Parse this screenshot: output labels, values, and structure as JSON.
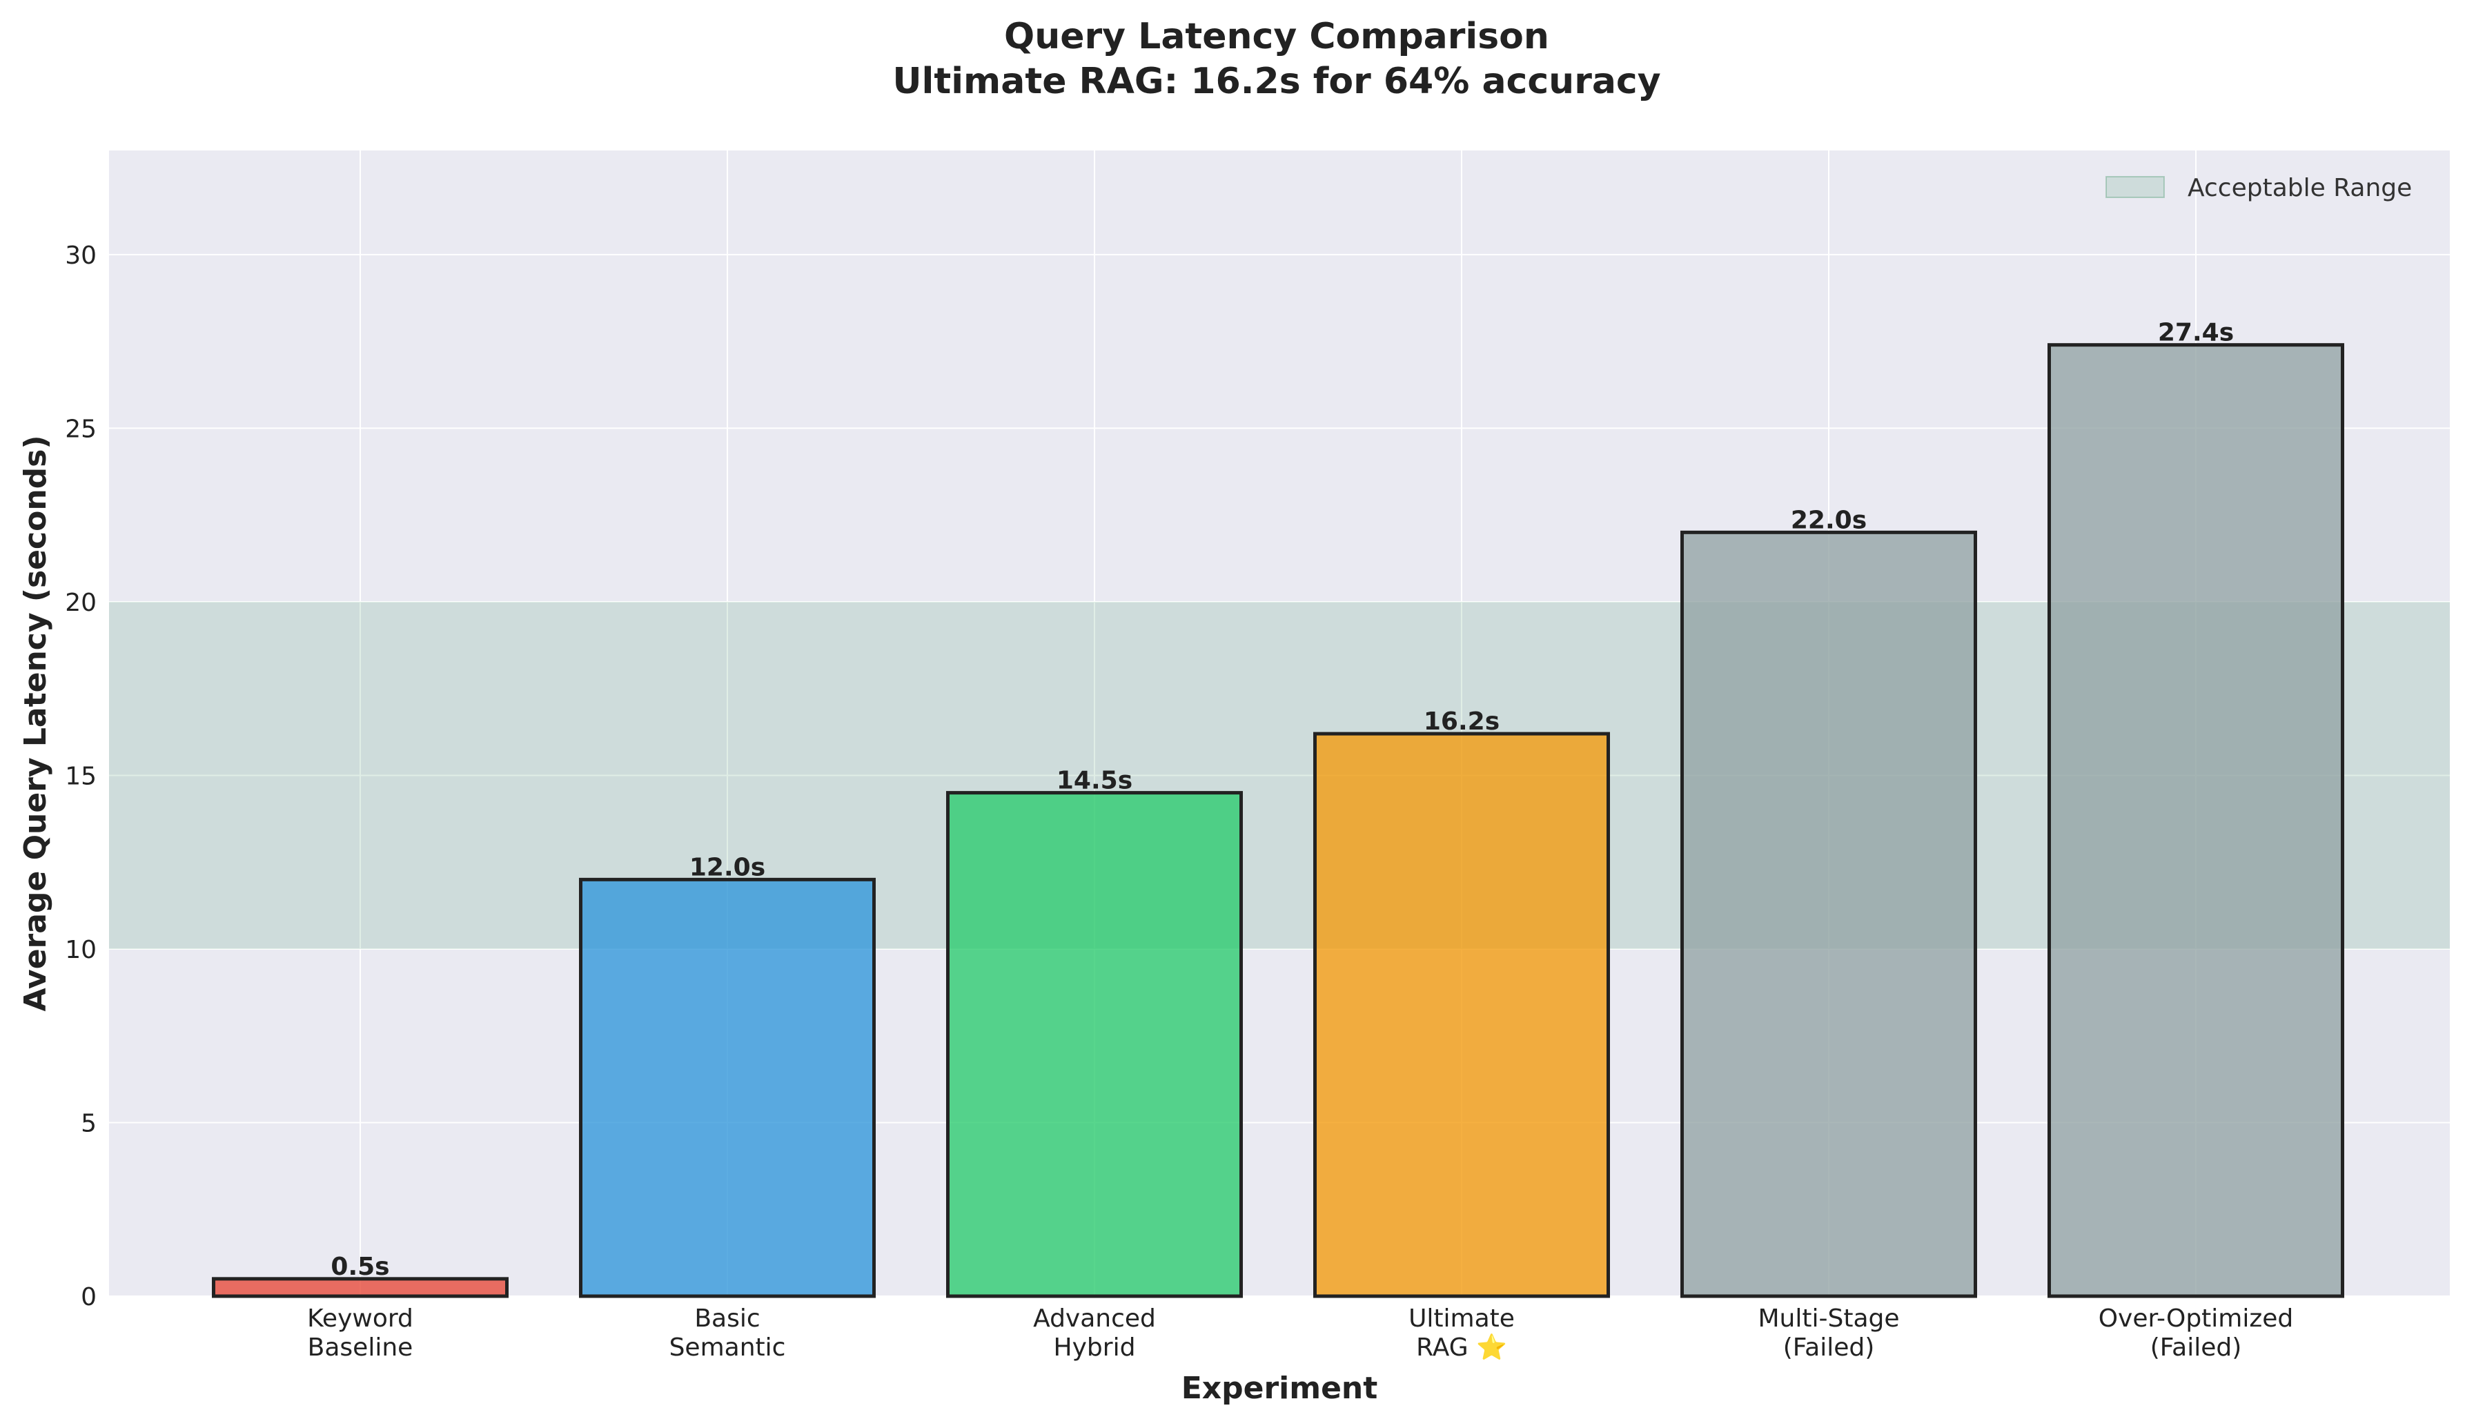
{
  "chart_data": {
    "type": "bar",
    "title": "Query Latency Comparison",
    "subtitle": "Ultimate RAG: 16.2s for 64% accuracy",
    "xlabel": "Experiment",
    "ylabel": "Average Query Latency (seconds)",
    "ylim": [
      0,
      33
    ],
    "yticks": [
      "0",
      "5",
      "10",
      "15",
      "20",
      "25",
      "30"
    ],
    "ytick_values": [
      0,
      5,
      10,
      15,
      20,
      25,
      30
    ],
    "grid": true,
    "categories": [
      [
        "Keyword",
        "Baseline"
      ],
      [
        "Basic",
        "Semantic"
      ],
      [
        "Advanced",
        "Hybrid"
      ],
      [
        "Ultimate",
        "RAG ⭐"
      ],
      [
        "Multi-Stage",
        "(Failed)"
      ],
      [
        "Over-Optimized",
        "(Failed)"
      ]
    ],
    "values": [
      0.5,
      12.0,
      14.5,
      16.2,
      22.0,
      27.4
    ],
    "value_labels": [
      "0.5s",
      "12.0s",
      "14.5s",
      "16.2s",
      "22.0s",
      "27.4s"
    ],
    "bar_colors": [
      "#e74c3c",
      "#3498db",
      "#2ecc71",
      "#f39c12",
      "#95a5a6",
      "#95a5a6"
    ],
    "band": {
      "from": 10,
      "to": 20,
      "color": "#2e8b57"
    },
    "legend": {
      "label": "Acceptable Range",
      "placement": "top-right"
    }
  }
}
